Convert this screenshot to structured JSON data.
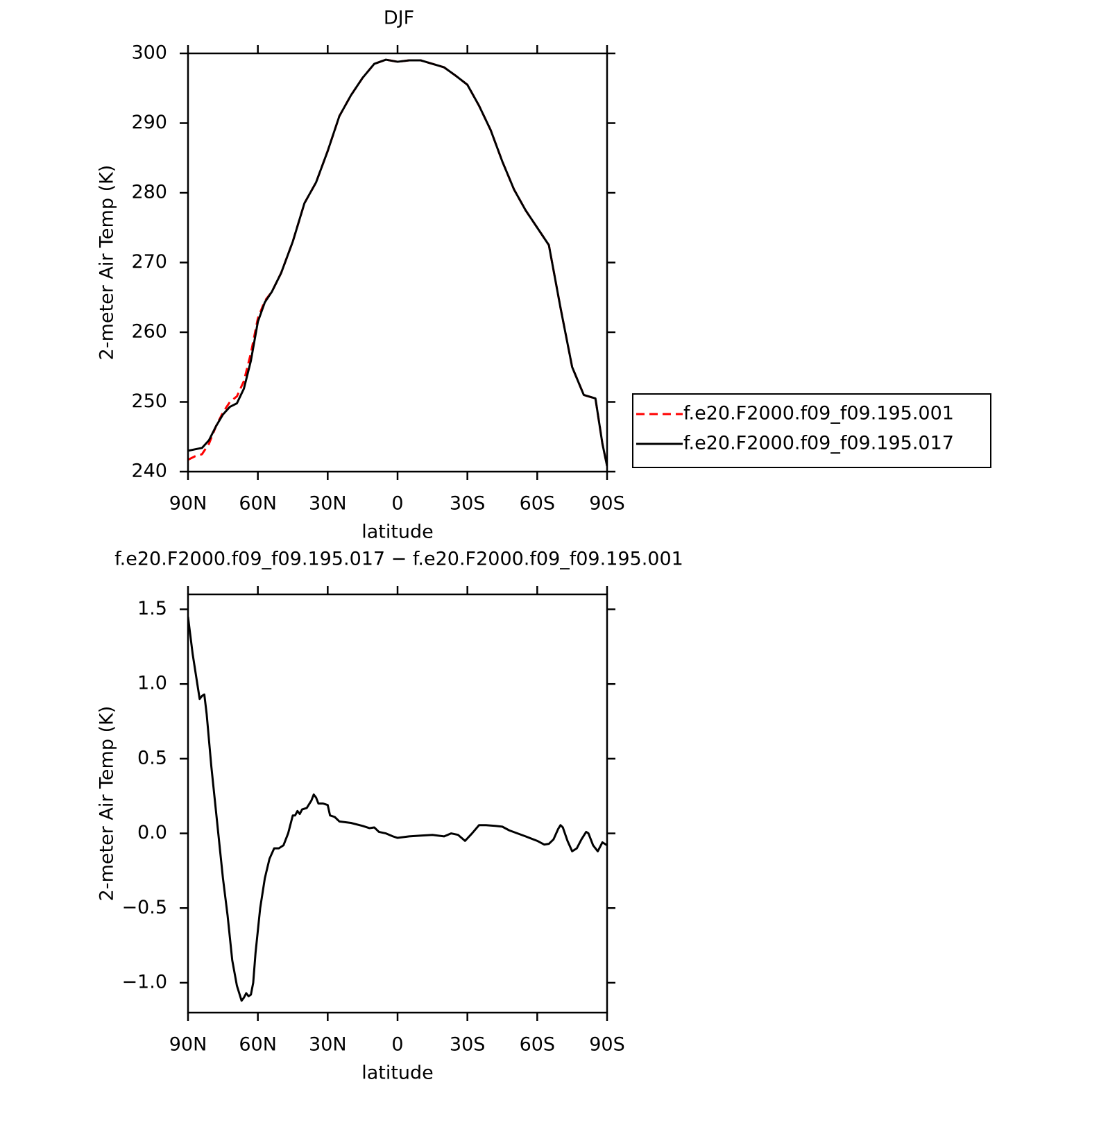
{
  "chart_data": [
    {
      "type": "line",
      "title": "DJF",
      "x_label": "latitude",
      "y_label": "2-meter Air Temp (K)",
      "xlim": [
        90,
        -90
      ],
      "xticks": [
        {
          "value": 90,
          "label": "90N"
        },
        {
          "value": 60,
          "label": "60N"
        },
        {
          "value": 30,
          "label": "30N"
        },
        0,
        {
          "value": -30,
          "label": "30S"
        },
        {
          "value": -60,
          "label": "60S"
        },
        {
          "value": -90,
          "label": "90S"
        }
      ],
      "ylim": [
        240,
        300
      ],
      "yticks": [
        240,
        250,
        260,
        270,
        280,
        290,
        300
      ],
      "legend": "right",
      "x": [
        90,
        87,
        84,
        81,
        78,
        75,
        72,
        69,
        66,
        63,
        60,
        57,
        54,
        50,
        45,
        40,
        35,
        30,
        25,
        20,
        15,
        10,
        5,
        0,
        -5,
        -10,
        -15,
        -20,
        -25,
        -30,
        -35,
        -40,
        -45,
        -50,
        -55,
        -60,
        -65,
        -70,
        -75,
        -80,
        -85,
        -88,
        -90
      ],
      "series": [
        {
          "name": "f.e20.F2000.f09_f09.195.001",
          "color": "#ff0000",
          "style": "dashed",
          "values": [
            241.7,
            242.2,
            242.5,
            244,
            246.5,
            248.5,
            250,
            250.8,
            253,
            257,
            262,
            264.5,
            265.8,
            268.5,
            273,
            278.5,
            281.5,
            286,
            291,
            294,
            296.5,
            298.5,
            299.1,
            298.8,
            299,
            299,
            298.5,
            298,
            296.8,
            295.5,
            292.5,
            289,
            284.5,
            280.5,
            277.5,
            275,
            272.5,
            263.5,
            255,
            251,
            250.5,
            244,
            240.8
          ]
        },
        {
          "name": "f.e20.F2000.f09_f09.195.017",
          "color": "#000000",
          "style": "solid",
          "values": [
            243.0,
            243.2,
            243.4,
            244.5,
            246.5,
            248.2,
            249.3,
            249.8,
            251.9,
            255.9,
            261.5,
            264.3,
            265.8,
            268.5,
            273,
            278.5,
            281.5,
            286,
            291,
            294,
            296.5,
            298.5,
            299.1,
            298.8,
            299,
            299,
            298.5,
            298,
            296.8,
            295.5,
            292.5,
            289,
            284.5,
            280.5,
            277.5,
            275,
            272.5,
            263.5,
            255,
            251,
            250.5,
            244,
            240.8
          ]
        }
      ]
    },
    {
      "type": "line",
      "title": "f.e20.F2000.f09_f09.195.017 − f.e20.F2000.f09_f09.195.001",
      "x_label": "latitude",
      "y_label": "2-meter Air Temp (K)",
      "xlim": [
        90,
        -90
      ],
      "xticks": [
        {
          "value": 90,
          "label": "90N"
        },
        {
          "value": 60,
          "label": "60N"
        },
        {
          "value": 30,
          "label": "30N"
        },
        0,
        {
          "value": -30,
          "label": "30S"
        },
        {
          "value": -60,
          "label": "60S"
        },
        {
          "value": -90,
          "label": "90S"
        }
      ],
      "ylim": [
        -1.2,
        1.6
      ],
      "yticks": [
        {
          "value": -1,
          "label": "−1.0"
        },
        {
          "value": -0.5,
          "label": "−0.5"
        },
        {
          "value": 0,
          "label": "0.0"
        },
        0.5,
        {
          "value": 1,
          "label": "1.0"
        },
        1.5
      ],
      "x": [
        90,
        88,
        86,
        85,
        84,
        83,
        82,
        80,
        77,
        75,
        73,
        71,
        69,
        67,
        66,
        65,
        64,
        63,
        62,
        61,
        59,
        57,
        55,
        53,
        51,
        49,
        47,
        45,
        44,
        43,
        42,
        41,
        39,
        37,
        36,
        35,
        34,
        32,
        30,
        29,
        27,
        25,
        20,
        15,
        12,
        10,
        8,
        5,
        2,
        0,
        -5,
        -10,
        -15,
        -20,
        -23,
        -26,
        -29,
        -32,
        -35,
        -38,
        -42,
        -45,
        -48,
        -55,
        -60,
        -63,
        -65,
        -67,
        -69,
        -70,
        -71,
        -73,
        -75,
        -77,
        -79,
        -81,
        -82,
        -84,
        -86,
        -88,
        -90
      ],
      "series": [
        {
          "color": "#000000",
          "style": "solid",
          "values": [
            1.45,
            1.2,
            1.0,
            0.9,
            0.92,
            0.93,
            0.8,
            0.45,
            0.0,
            -0.3,
            -0.55,
            -0.85,
            -1.02,
            -1.12,
            -1.1,
            -1.07,
            -1.09,
            -1.08,
            -1.0,
            -0.8,
            -0.5,
            -0.3,
            -0.17,
            -0.1,
            -0.1,
            -0.08,
            0.0,
            0.12,
            0.12,
            0.15,
            0.13,
            0.16,
            0.17,
            0.22,
            0.26,
            0.24,
            0.2,
            0.2,
            0.19,
            0.12,
            0.11,
            0.08,
            0.07,
            0.05,
            0.035,
            0.04,
            0.01,
            0.0,
            -0.02,
            -0.03,
            -0.02,
            -0.015,
            -0.01,
            -0.02,
            0.0,
            -0.01,
            -0.05,
            0.0,
            0.055,
            0.055,
            0.05,
            0.045,
            0.02,
            -0.02,
            -0.05,
            -0.075,
            -0.07,
            -0.04,
            0.03,
            0.055,
            0.04,
            -0.05,
            -0.12,
            -0.1,
            -0.04,
            0.01,
            0.0,
            -0.08,
            -0.12,
            -0.06,
            -0.08
          ]
        }
      ]
    }
  ]
}
